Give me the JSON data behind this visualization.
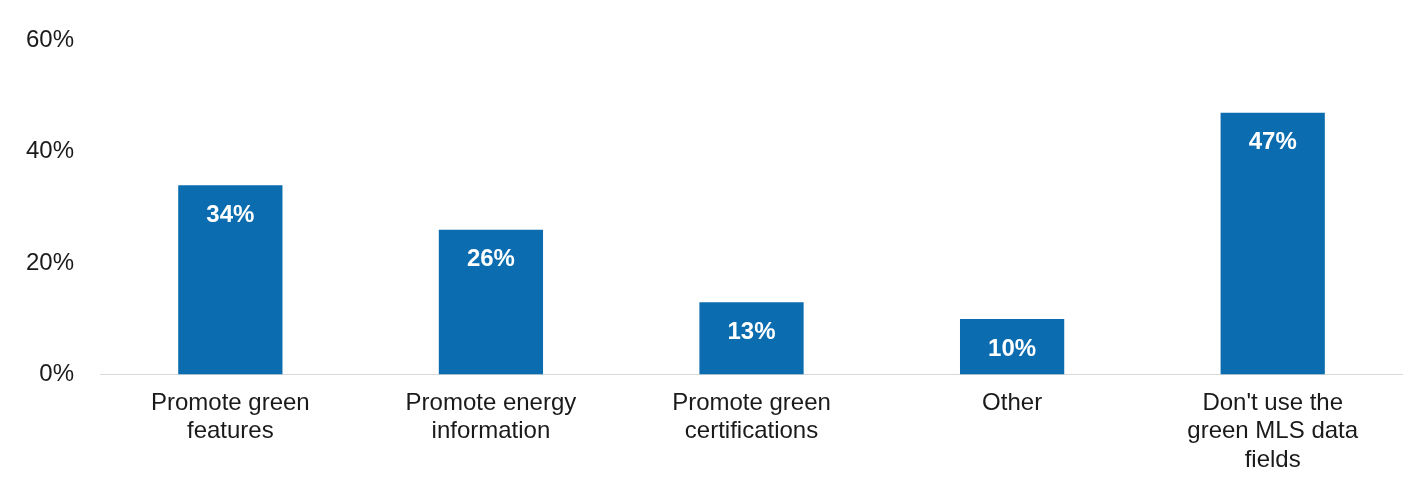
{
  "chart_data": {
    "type": "bar",
    "categories": [
      "Promote green features",
      "Promote energy information",
      "Promote green certifications",
      "Other",
      "Don't use the green MLS data fields"
    ],
    "values": [
      34,
      26,
      13,
      10,
      47
    ],
    "color": "#0b6cb0",
    "ylim": [
      0,
      60
    ],
    "yticks": [
      {
        "value": 0,
        "label": "0%"
      },
      {
        "value": 20,
        "label": "20%"
      },
      {
        "value": 40,
        "label": "40%"
      },
      {
        "value": 60,
        "label": "60%"
      }
    ],
    "value_labels": [
      "34%",
      "26%",
      "13%",
      "10%",
      "47%"
    ],
    "grid": false,
    "legend": false
  }
}
